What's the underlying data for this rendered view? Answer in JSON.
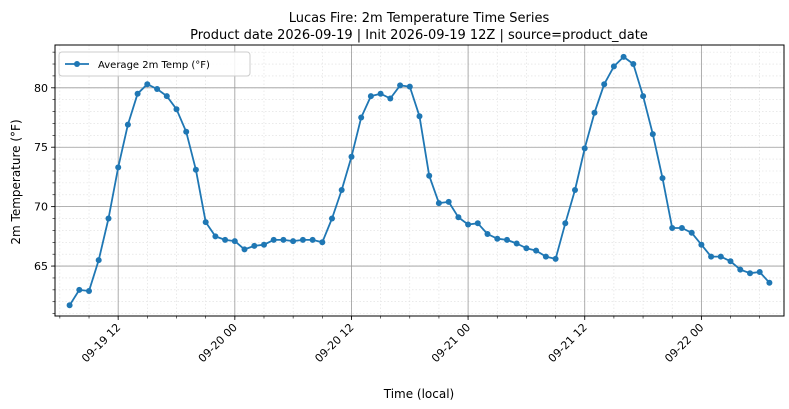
{
  "chart_data": {
    "type": "line",
    "title": "Lucas Fire: 2m Temperature Time Series",
    "subtitle": "Product date 2026-09-19 | Init 2026-09-19 12Z | source=product_date",
    "xlabel": "Time (local)",
    "ylabel": "2m Temperature (°F)",
    "x_tick_labels": [
      "09-19 12",
      "09-20 00",
      "09-20 12",
      "09-21 00",
      "09-21 12",
      "09-22 00"
    ],
    "x_tick_values": [
      12,
      24,
      36,
      48,
      60,
      72
    ],
    "x_unit": "hours since 2026-09-19 00:00 local",
    "xlim": [
      5.5,
      80.5
    ],
    "y_ticks": [
      65,
      70,
      75,
      80
    ],
    "ylim": [
      60.8,
      83.6
    ],
    "grid": true,
    "legend_position": "top-left",
    "series": [
      {
        "name": "Average 2m Temp (°F)",
        "color": "#1f77b4",
        "x": [
          7,
          8,
          9,
          10,
          11,
          12,
          13,
          14,
          15,
          16,
          17,
          18,
          19,
          20,
          21,
          22,
          23,
          24,
          25,
          26,
          27,
          28,
          29,
          30,
          31,
          32,
          33,
          34,
          35,
          36,
          37,
          38,
          39,
          40,
          41,
          42,
          43,
          44,
          45,
          46,
          47,
          48,
          49,
          50,
          51,
          52,
          53,
          54,
          55,
          56,
          57,
          58,
          59,
          60,
          61,
          62,
          63,
          64,
          65,
          66,
          67,
          68,
          69,
          70,
          71,
          72,
          73,
          74,
          75,
          76,
          77,
          78,
          79
        ],
        "y": [
          61.7,
          63.0,
          62.9,
          65.5,
          69.0,
          73.3,
          76.9,
          79.5,
          80.3,
          79.9,
          79.3,
          78.2,
          76.3,
          73.1,
          68.7,
          67.5,
          67.2,
          67.1,
          66.4,
          66.7,
          66.8,
          67.2,
          67.2,
          67.1,
          67.2,
          67.2,
          67.0,
          69.0,
          71.4,
          74.2,
          77.5,
          79.3,
          79.5,
          79.1,
          80.2,
          80.1,
          77.6,
          72.6,
          70.3,
          70.4,
          69.1,
          68.5,
          68.6,
          67.7,
          67.3,
          67.2,
          66.9,
          66.5,
          66.3,
          65.8,
          65.6,
          68.6,
          71.4,
          74.9,
          77.9,
          80.3,
          81.8,
          82.6,
          82.0,
          79.3,
          76.1,
          72.4,
          68.2,
          68.2,
          67.8,
          66.8,
          65.8,
          65.8,
          65.4,
          64.7,
          64.4,
          64.5,
          63.6
        ]
      }
    ]
  }
}
